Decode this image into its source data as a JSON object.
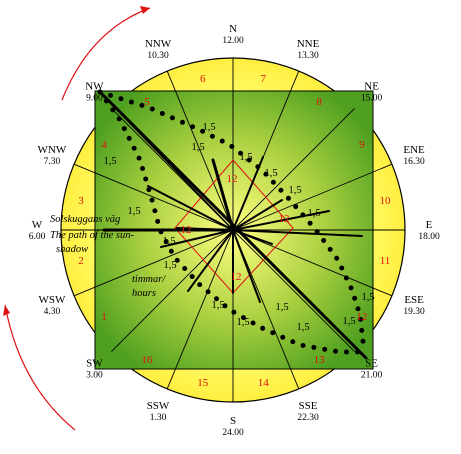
{
  "colors": {
    "ring": "#ffff66",
    "square": "#55aa22",
    "center_glow": "#ffff80",
    "numbers": "#e01010",
    "arrows": "#e01010",
    "lines": "#000000",
    "noon_diamond": "#e01010"
  },
  "compass": [
    {
      "dir": "N",
      "time": "12.00"
    },
    {
      "dir": "NNE",
      "time": "13.30"
    },
    {
      "dir": "NE",
      "time": "15.00"
    },
    {
      "dir": "ENE",
      "time": "16.30"
    },
    {
      "dir": "E",
      "time": "18.00"
    },
    {
      "dir": "ESE",
      "time": "19.30"
    },
    {
      "dir": "SE",
      "time": "21.00"
    },
    {
      "dir": "SSE",
      "time": "22.30"
    },
    {
      "dir": "S",
      "time": "24.00"
    },
    {
      "dir": "SSW",
      "time": "1.30"
    },
    {
      "dir": "SW",
      "time": "3.00"
    },
    {
      "dir": "WSW",
      "time": "4.30"
    },
    {
      "dir": "W",
      "time": "6.00"
    },
    {
      "dir": "WNW",
      "time": "7.30"
    },
    {
      "dir": "NW",
      "time": "9.00"
    },
    {
      "dir": "NNW",
      "time": "10.30"
    }
  ],
  "sector_numbers": [
    "5",
    "6",
    "7",
    "8",
    "9",
    "10",
    "11",
    "12",
    "13",
    "14",
    "15",
    "16",
    "1",
    "2",
    "3",
    "4"
  ],
  "hour_value": "1,5",
  "noon_marker": "12",
  "labels": {
    "swedish": "Solskuggans väg",
    "english_line1": "The path of the sun-",
    "english_line2": "shadow",
    "hours_line1": "timmar/",
    "hours_line2": "hours"
  }
}
